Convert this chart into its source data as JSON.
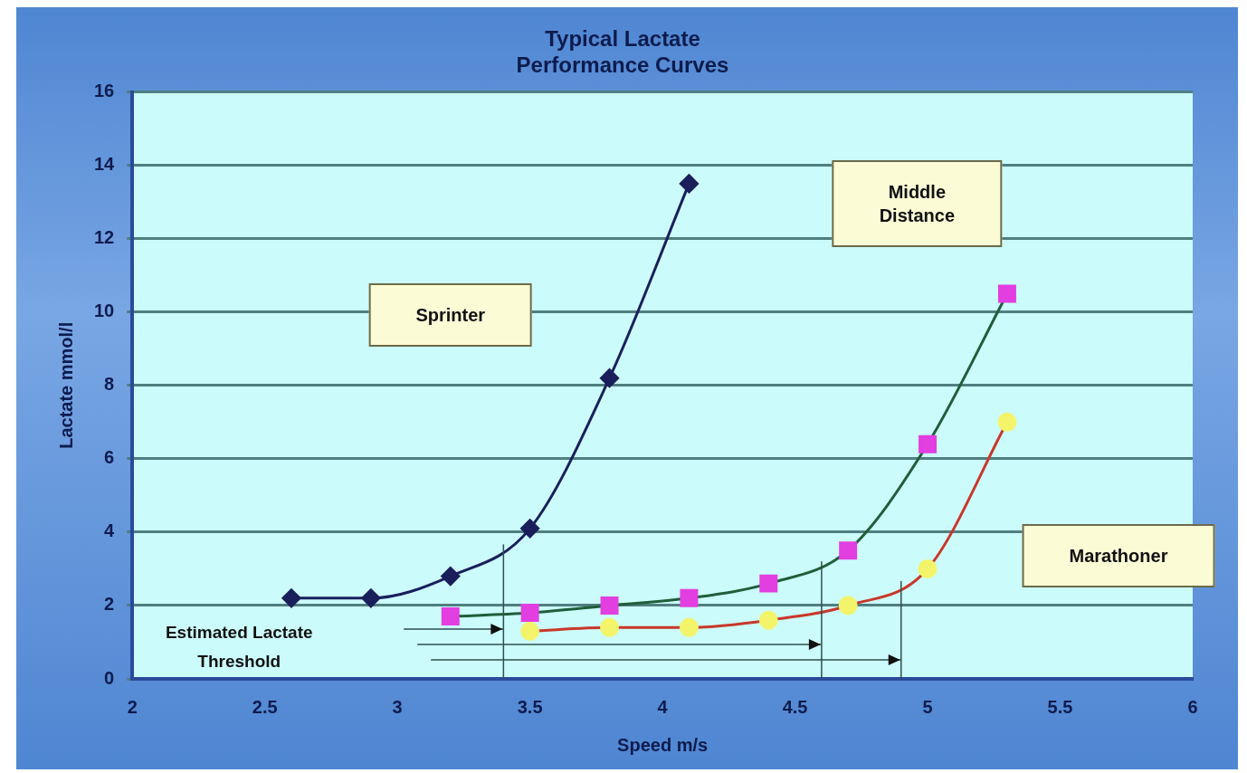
{
  "chart_data": {
    "type": "line",
    "title": "Typical Lactate\nPerformance Curves",
    "xlabel": "Speed m/s",
    "ylabel": "Lactate mmol/l",
    "xlim": [
      2,
      6
    ],
    "xticks": [
      2,
      2.5,
      3,
      3.5,
      4,
      4.5,
      5,
      5.5,
      6
    ],
    "ylim": [
      0,
      16
    ],
    "yticks": [
      0,
      2,
      4,
      6,
      8,
      10,
      12,
      14,
      16
    ],
    "grid": "y",
    "legend": false,
    "series": [
      {
        "color": "#1a1f5c",
        "marker": "diamond",
        "colors": [
          "#1a1f5c",
          "#1a1f5c",
          "#1a1f5c",
          "#1a1f5c",
          "#1a1f5c",
          "#1a1f5c"
        ],
        "x": [
          2.6,
          2.9,
          3.2,
          3.5,
          3.8,
          4.1
        ],
        "values": [
          2.2,
          2.2,
          2.8,
          4.1,
          8.2,
          13.5
        ]
      },
      {
        "color": "#1f5e3a",
        "marker": "square",
        "colors": [
          "#e23ee0",
          "#e23ee0",
          "#e23ee0",
          "#e23ee0",
          "#e23ee0",
          "#e23ee0",
          "#e23ee0",
          "#e23ee0"
        ],
        "x": [
          3.2,
          3.5,
          3.8,
          4.1,
          4.4,
          4.7,
          5.0,
          5.3
        ],
        "values": [
          1.7,
          1.8,
          2.0,
          2.2,
          2.6,
          3.5,
          6.4,
          10.5
        ]
      },
      {
        "color": "#c8382a",
        "marker": "circle",
        "colors": [
          "#f4f46a",
          "#f4f46a",
          "#f4f46a",
          "#f4f46a",
          "#f4f46a",
          "#f4f46a",
          "#f4f46a"
        ],
        "x": [
          3.5,
          3.8,
          4.1,
          4.4,
          4.7,
          5.0,
          5.3
        ],
        "values": [
          1.3,
          1.4,
          1.4,
          1.6,
          2.0,
          3.0,
          7.0
        ]
      }
    ],
    "ref_lines": [
      {
        "axis": "x",
        "value": 3.4
      },
      {
        "axis": "x",
        "value": 4.6
      },
      {
        "axis": "x",
        "value": 4.9
      }
    ],
    "annotations": [
      "Estimated Lactate\nThreshold",
      "Sprinter",
      "Middle\nDistance",
      "Marathoner"
    ]
  }
}
